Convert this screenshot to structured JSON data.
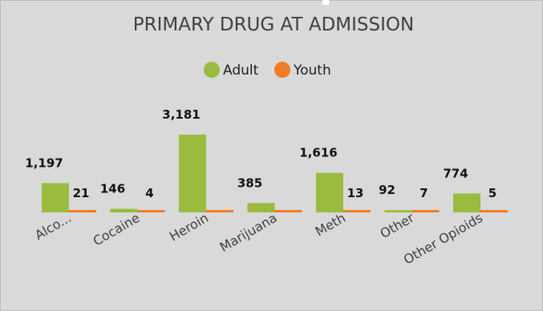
{
  "chart_data": {
    "type": "bar",
    "title": "PRIMARY DRUG AT ADMISSION",
    "categories": [
      "Alco...",
      "Cocaine",
      "Heroin",
      "Marijuana",
      "Meth",
      "Other",
      "Other Opioids"
    ],
    "series": [
      {
        "name": "Adult",
        "color": "#9bbb3f",
        "values": [
          1197,
          146,
          3181,
          385,
          1616,
          92,
          774
        ],
        "labels": [
          "1,197",
          "146",
          "3,181",
          "385",
          "1,616",
          "92",
          "774"
        ]
      },
      {
        "name": "Youth",
        "color": "#f07c27",
        "values": [
          21,
          4,
          0,
          0,
          13,
          7,
          5
        ],
        "labels": [
          "21",
          "4",
          "",
          "",
          "13",
          "7",
          "5"
        ]
      }
    ],
    "ylim": [
      0,
      3181
    ],
    "grid": false,
    "legend": "top-center",
    "xlabel": "",
    "ylabel": ""
  }
}
